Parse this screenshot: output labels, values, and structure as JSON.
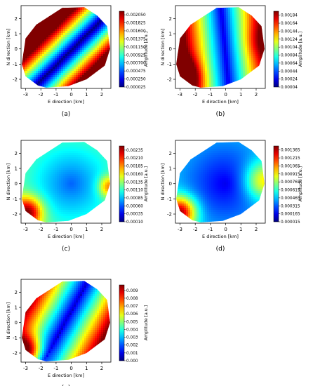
{
  "chart_data": [
    {
      "type": "heatmap",
      "panel_label": "(a)",
      "xlabel": "E direction [km]",
      "ylabel": "N direction [km]",
      "xlim": [
        -3.3,
        2.6
      ],
      "ylim": [
        -2.6,
        2.85
      ],
      "x_ticks": [
        "-3",
        "-2",
        "-1",
        "0",
        "1",
        "2"
      ],
      "y_ticks": [
        "-2",
        "-1",
        "0",
        "1",
        "2"
      ],
      "colorbar_label": "Amplitude [a.u.]",
      "colorbar_ticks": [
        "0.002050",
        "0.001825",
        "0.001600",
        "0.001375",
        "0.001150",
        "0.000925",
        "0.000700",
        "0.000475",
        "0.000250",
        "0.000025"
      ],
      "vmin": 2.5e-05,
      "vmax": 0.00215,
      "pattern": "diagonal low-amplitude band, high values at NW and SE edges"
    },
    {
      "type": "heatmap",
      "panel_label": "(b)",
      "xlabel": "E direction [km]",
      "ylabel": "N direction [km]",
      "xlim": [
        -3.3,
        2.6
      ],
      "ylim": [
        -2.6,
        2.85
      ],
      "x_ticks": [
        "-3",
        "-2",
        "-1",
        "0",
        "1",
        "2"
      ],
      "y_ticks": [
        "-2",
        "-1",
        "0",
        "1",
        "2"
      ],
      "colorbar_label": "Amplitude [a.u.]",
      "colorbar_ticks": [
        "0.00184",
        "0.00164",
        "0.00144",
        "0.00124",
        "0.00104",
        "0.00084",
        "0.00064",
        "0.00044",
        "0.00024",
        "0.00004"
      ],
      "vmin": 4e-05,
      "vmax": 0.00194,
      "pattern": "vertical low-amplitude band, high values at SW corner"
    },
    {
      "type": "heatmap",
      "panel_label": "(c)",
      "xlabel": "E direction [km]",
      "ylabel": "N direction [km]",
      "xlim": [
        -3.3,
        2.6
      ],
      "ylim": [
        -2.6,
        2.85
      ],
      "x_ticks": [
        "-3",
        "-2",
        "-1",
        "0",
        "1",
        "2"
      ],
      "y_ticks": [
        "-2",
        "-1",
        "0",
        "1",
        "2"
      ],
      "colorbar_label": "Amplitude [a.u.]",
      "colorbar_ticks": [
        "0.00235",
        "0.00210",
        "0.00185",
        "0.00160",
        "0.00135",
        "0.00110",
        "0.00085",
        "0.00060",
        "0.00035",
        "0.00010"
      ],
      "vmin": 0.0001,
      "vmax": 0.00248,
      "pattern": "central low-amplitude region, high values at SW corner and E edge"
    },
    {
      "type": "heatmap",
      "panel_label": "(d)",
      "xlabel": "E direction [km]",
      "ylabel": "N direction [km]",
      "xlim": [
        -3.3,
        2.6
      ],
      "ylim": [
        -2.6,
        2.85
      ],
      "x_ticks": [
        "-3",
        "-2",
        "-1",
        "0",
        "1",
        "2"
      ],
      "y_ticks": [
        "-2",
        "-1",
        "0",
        "1",
        "2"
      ],
      "colorbar_label": "Amplitude [a.u.]",
      "colorbar_ticks": [
        "0.001365",
        "0.001215",
        "0.001065",
        "0.000915",
        "0.000765",
        "0.000615",
        "0.000465",
        "0.000315",
        "0.000165",
        "0.000015"
      ],
      "vmin": 1.5e-05,
      "vmax": 0.00144,
      "pattern": "broad low-amplitude region, high values at SW corner and E edge"
    },
    {
      "type": "heatmap",
      "panel_label": "(e)",
      "xlabel": "E direction [km]",
      "ylabel": "N direction [km]",
      "xlim": [
        -3.3,
        2.6
      ],
      "ylim": [
        -2.6,
        2.85
      ],
      "x_ticks": [
        "-3",
        "-2",
        "-1",
        "0",
        "1",
        "2"
      ],
      "y_ticks": [
        "-2",
        "-1",
        "0",
        "1",
        "2"
      ],
      "colorbar_label": "Amplitude [a.u.]",
      "colorbar_ticks": [
        "0.009",
        "0.008",
        "0.007",
        "0.006",
        "0.005",
        "0.004",
        "0.003",
        "0.002",
        "0.001",
        "0.000"
      ],
      "vmin": 0.0,
      "vmax": 0.0097,
      "pattern": "narrow diagonal low-amplitude line, high values at SW corner"
    }
  ]
}
